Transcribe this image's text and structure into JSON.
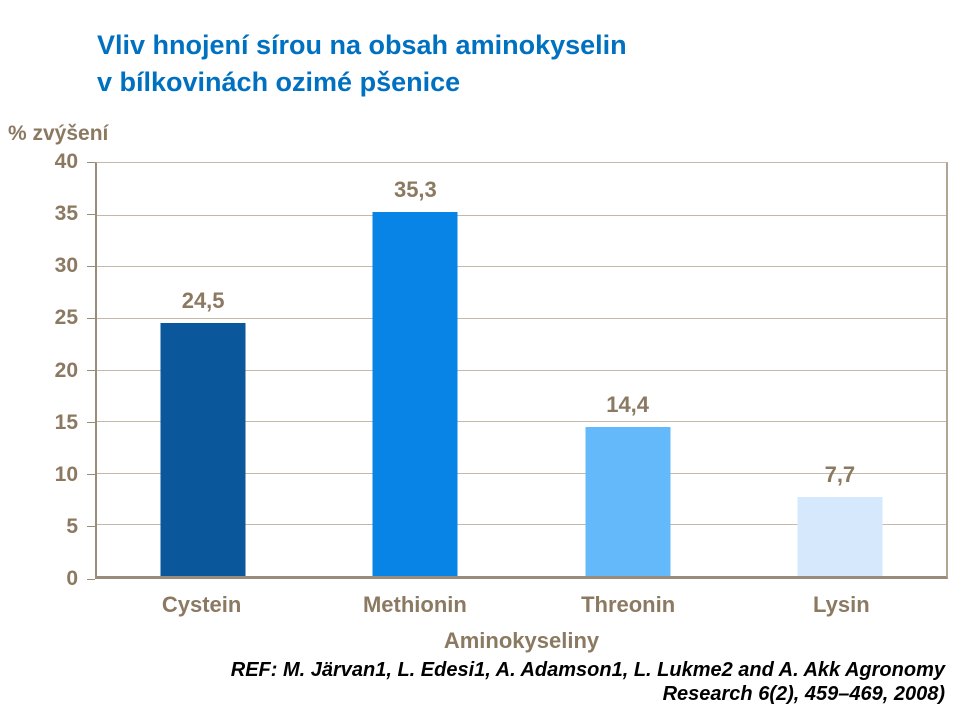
{
  "title": {
    "line1": "Vliv hnojení sírou na obsah aminokyselin",
    "line2": "v bílkovinách ozimé pšenice"
  },
  "chart_data": {
    "type": "bar",
    "title": "Vliv hnojení sírou na obsah aminokyselin v bílkovinách ozimé pšenice",
    "categories": [
      "Cystein",
      "Methionin",
      "Threonin",
      "Lysin"
    ],
    "values": [
      24.5,
      35.3,
      14.4,
      7.7
    ],
    "value_labels": [
      "24,5",
      "35,3",
      "14,4",
      "7,7"
    ],
    "bar_colors": [
      "#0A579C",
      "#0884E6",
      "#64B9FB",
      "#D6E9FC"
    ],
    "xlabel": "Aminokyseliny",
    "ylabel": "% zvýšení",
    "ylim": [
      0,
      40
    ],
    "ytick_step": 5,
    "ytick_labels": [
      "0",
      "5",
      "10",
      "15",
      "20",
      "25",
      "30",
      "35",
      "40"
    ],
    "grid": true,
    "legend": false,
    "decimal_separator": ","
  },
  "footer": {
    "line1": "REF: M. Järvan1, L. Edesi1, A. Adamson1, L. Lukme2 and A. Akk Agronomy",
    "line2": "Research 6(2), 459–469, 2008)"
  },
  "colors": {
    "title": "#0070C0",
    "axis_text": "#8B7961",
    "axis_line": "#9A8C7A",
    "axis_line_light": "#B1A593",
    "gridline": "#C4B9A9",
    "footer_text": "#000000",
    "background": "#FFFFFF"
  }
}
